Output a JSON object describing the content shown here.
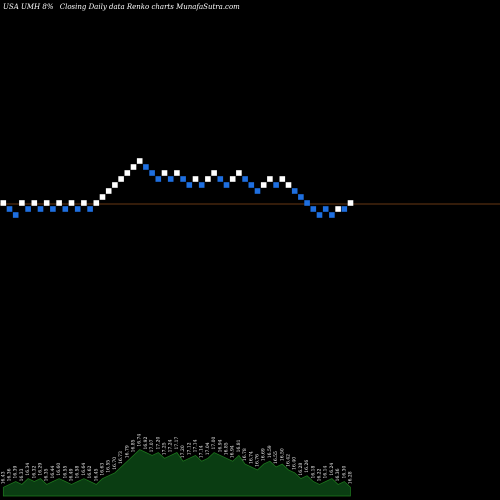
{
  "header": {
    "ticker": "USA UMH 8%",
    "description": "Closing Daily data Renko charts MunafaSutra.com"
  },
  "chart_data": {
    "type": "renko",
    "reference_line": 0,
    "colors": {
      "up": "#ffffff",
      "down": "#1e6fe0",
      "reference": "#8b4a1a",
      "volume": "#0a3d12",
      "volume_edge": "#1e7a1e"
    },
    "bricks": [
      {
        "dir": "up",
        "level": 0
      },
      {
        "dir": "down",
        "level": -1
      },
      {
        "dir": "down",
        "level": -2
      },
      {
        "dir": "up",
        "level": 0
      },
      {
        "dir": "down",
        "level": -1
      },
      {
        "dir": "up",
        "level": 0
      },
      {
        "dir": "down",
        "level": -1
      },
      {
        "dir": "up",
        "level": 0
      },
      {
        "dir": "down",
        "level": -1
      },
      {
        "dir": "up",
        "level": 0
      },
      {
        "dir": "down",
        "level": -1
      },
      {
        "dir": "up",
        "level": 0
      },
      {
        "dir": "down",
        "level": -1
      },
      {
        "dir": "up",
        "level": 0
      },
      {
        "dir": "down",
        "level": -1
      },
      {
        "dir": "up",
        "level": 0
      },
      {
        "dir": "up",
        "level": 1
      },
      {
        "dir": "up",
        "level": 2
      },
      {
        "dir": "up",
        "level": 3
      },
      {
        "dir": "up",
        "level": 4
      },
      {
        "dir": "up",
        "level": 5
      },
      {
        "dir": "up",
        "level": 6
      },
      {
        "dir": "up",
        "level": 7
      },
      {
        "dir": "down",
        "level": 6
      },
      {
        "dir": "down",
        "level": 5
      },
      {
        "dir": "down",
        "level": 4
      },
      {
        "dir": "up",
        "level": 5
      },
      {
        "dir": "down",
        "level": 4
      },
      {
        "dir": "up",
        "level": 5
      },
      {
        "dir": "down",
        "level": 4
      },
      {
        "dir": "down",
        "level": 3
      },
      {
        "dir": "up",
        "level": 4
      },
      {
        "dir": "down",
        "level": 3
      },
      {
        "dir": "up",
        "level": 4
      },
      {
        "dir": "up",
        "level": 5
      },
      {
        "dir": "down",
        "level": 4
      },
      {
        "dir": "down",
        "level": 3
      },
      {
        "dir": "up",
        "level": 4
      },
      {
        "dir": "up",
        "level": 5
      },
      {
        "dir": "down",
        "level": 4
      },
      {
        "dir": "down",
        "level": 3
      },
      {
        "dir": "down",
        "level": 2
      },
      {
        "dir": "up",
        "level": 3
      },
      {
        "dir": "up",
        "level": 4
      },
      {
        "dir": "down",
        "level": 3
      },
      {
        "dir": "up",
        "level": 4
      },
      {
        "dir": "up",
        "level": 3
      },
      {
        "dir": "down",
        "level": 2
      },
      {
        "dir": "down",
        "level": 1
      },
      {
        "dir": "down",
        "level": 0
      },
      {
        "dir": "down",
        "level": -1
      },
      {
        "dir": "down",
        "level": -2
      },
      {
        "dir": "down",
        "level": -1
      },
      {
        "dir": "down",
        "level": -2
      },
      {
        "dir": "up",
        "level": -1
      },
      {
        "dir": "down",
        "level": -1
      },
      {
        "dir": "up",
        "level": 0
      }
    ],
    "volume_profile": [
      3,
      4,
      5,
      4,
      6,
      5,
      6,
      4,
      5,
      6,
      5,
      4,
      5,
      6,
      5,
      4,
      6,
      7,
      8,
      10,
      12,
      14,
      16,
      15,
      14,
      15,
      13,
      14,
      15,
      12,
      13,
      14,
      12,
      13,
      15,
      14,
      13,
      12,
      14,
      11,
      10,
      9,
      11,
      12,
      10,
      11,
      9,
      8,
      6,
      7,
      5,
      4,
      5,
      6,
      4,
      5,
      3
    ],
    "price_labels": [
      "16.43",
      "16.36",
      "16.39",
      "16.33",
      "16.34",
      "16.32",
      "16.29",
      "16.35",
      "16.44",
      "16.60",
      "16.55",
      "16.49",
      "16.58",
      "16.64",
      "16.62",
      "16.45",
      "16.63",
      "16.55",
      "16.70",
      "16.73",
      "16.79",
      "16.85",
      "16.74",
      "16.92",
      "17.07",
      "17.20",
      "17.25",
      "17.24",
      "17.17",
      "17.20",
      "17.12",
      "17.14",
      "17.14",
      "17.04",
      "17.00",
      "16.94",
      "16.85",
      "16.94",
      "16.81",
      "16.78",
      "16.74",
      "16.76",
      "16.69",
      "16.59",
      "16.55",
      "16.50",
      "16.42",
      "16.40",
      "16.28",
      "16.26",
      "16.18",
      "16.22",
      "16.14",
      "16.24",
      "16.36",
      "16.30",
      "16.28"
    ]
  }
}
